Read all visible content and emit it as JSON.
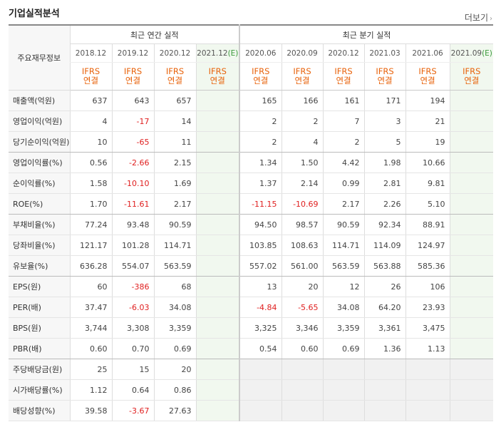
{
  "title": "기업실적분석",
  "more_label": "더보기",
  "row_header_label": "주요재무정보",
  "annual_group_label": "최근 연간 실적",
  "quarter_group_label": "최근 분기 실적",
  "annual_periods": [
    "2018.12",
    "2019.12",
    "2020.12",
    "2021.12"
  ],
  "quarter_periods": [
    "2020.06",
    "2020.09",
    "2020.12",
    "2021.03",
    "2021.06",
    "2021.09"
  ],
  "estimate_mark": "(E)",
  "ifrs_top": "IFRS",
  "ifrs_bottom": "연결",
  "rows": [
    {
      "label": "매출액(억원)",
      "values": [
        "637",
        "643",
        "657",
        "",
        "165",
        "166",
        "161",
        "171",
        "194",
        ""
      ]
    },
    {
      "label": "영업이익(억원)",
      "values": [
        "4",
        "-17",
        "14",
        "",
        "2",
        "2",
        "7",
        "3",
        "21",
        ""
      ]
    },
    {
      "label": "당기순이익(억원)",
      "values": [
        "10",
        "-65",
        "11",
        "",
        "2",
        "4",
        "2",
        "5",
        "19",
        ""
      ]
    },
    {
      "label": "영업이익률(%)",
      "values": [
        "0.56",
        "-2.66",
        "2.15",
        "",
        "1.34",
        "1.50",
        "4.42",
        "1.98",
        "10.66",
        ""
      ]
    },
    {
      "label": "순이익률(%)",
      "values": [
        "1.58",
        "-10.10",
        "1.69",
        "",
        "1.37",
        "2.14",
        "0.99",
        "2.81",
        "9.81",
        ""
      ]
    },
    {
      "label": "ROE(%)",
      "values": [
        "1.70",
        "-11.61",
        "2.17",
        "",
        "-11.15",
        "-10.69",
        "2.17",
        "2.26",
        "5.10",
        ""
      ]
    },
    {
      "label": "부채비율(%)",
      "values": [
        "77.24",
        "93.48",
        "90.59",
        "",
        "94.50",
        "98.57",
        "90.59",
        "92.34",
        "88.91",
        ""
      ]
    },
    {
      "label": "당좌비율(%)",
      "values": [
        "121.17",
        "101.28",
        "114.71",
        "",
        "103.85",
        "108.63",
        "114.71",
        "114.09",
        "124.97",
        ""
      ]
    },
    {
      "label": "유보율(%)",
      "values": [
        "636.28",
        "554.07",
        "563.59",
        "",
        "557.02",
        "561.00",
        "563.59",
        "563.88",
        "585.36",
        ""
      ]
    },
    {
      "label": "EPS(원)",
      "values": [
        "60",
        "-386",
        "68",
        "",
        "13",
        "20",
        "12",
        "26",
        "106",
        ""
      ]
    },
    {
      "label": "PER(배)",
      "values": [
        "37.47",
        "-6.03",
        "34.08",
        "",
        "-4.84",
        "-5.65",
        "34.08",
        "64.20",
        "23.93",
        ""
      ]
    },
    {
      "label": "BPS(원)",
      "values": [
        "3,744",
        "3,308",
        "3,359",
        "",
        "3,325",
        "3,346",
        "3,359",
        "3,361",
        "3,475",
        ""
      ]
    },
    {
      "label": "PBR(배)",
      "values": [
        "0.60",
        "0.70",
        "0.69",
        "",
        "0.54",
        "0.60",
        "0.69",
        "1.36",
        "1.13",
        ""
      ]
    },
    {
      "label": "주당배당금(원)",
      "values": [
        "25",
        "15",
        "20",
        "",
        "",
        "",
        "",
        "",
        "",
        ""
      ]
    },
    {
      "label": "시가배당률(%)",
      "values": [
        "1.12",
        "0.64",
        "0.86",
        "",
        "",
        "",
        "",
        "",
        "",
        ""
      ]
    },
    {
      "label": "배당성향(%)",
      "values": [
        "39.58",
        "-3.67",
        "27.63",
        "",
        "",
        "",
        "",
        "",
        "",
        ""
      ]
    }
  ]
}
